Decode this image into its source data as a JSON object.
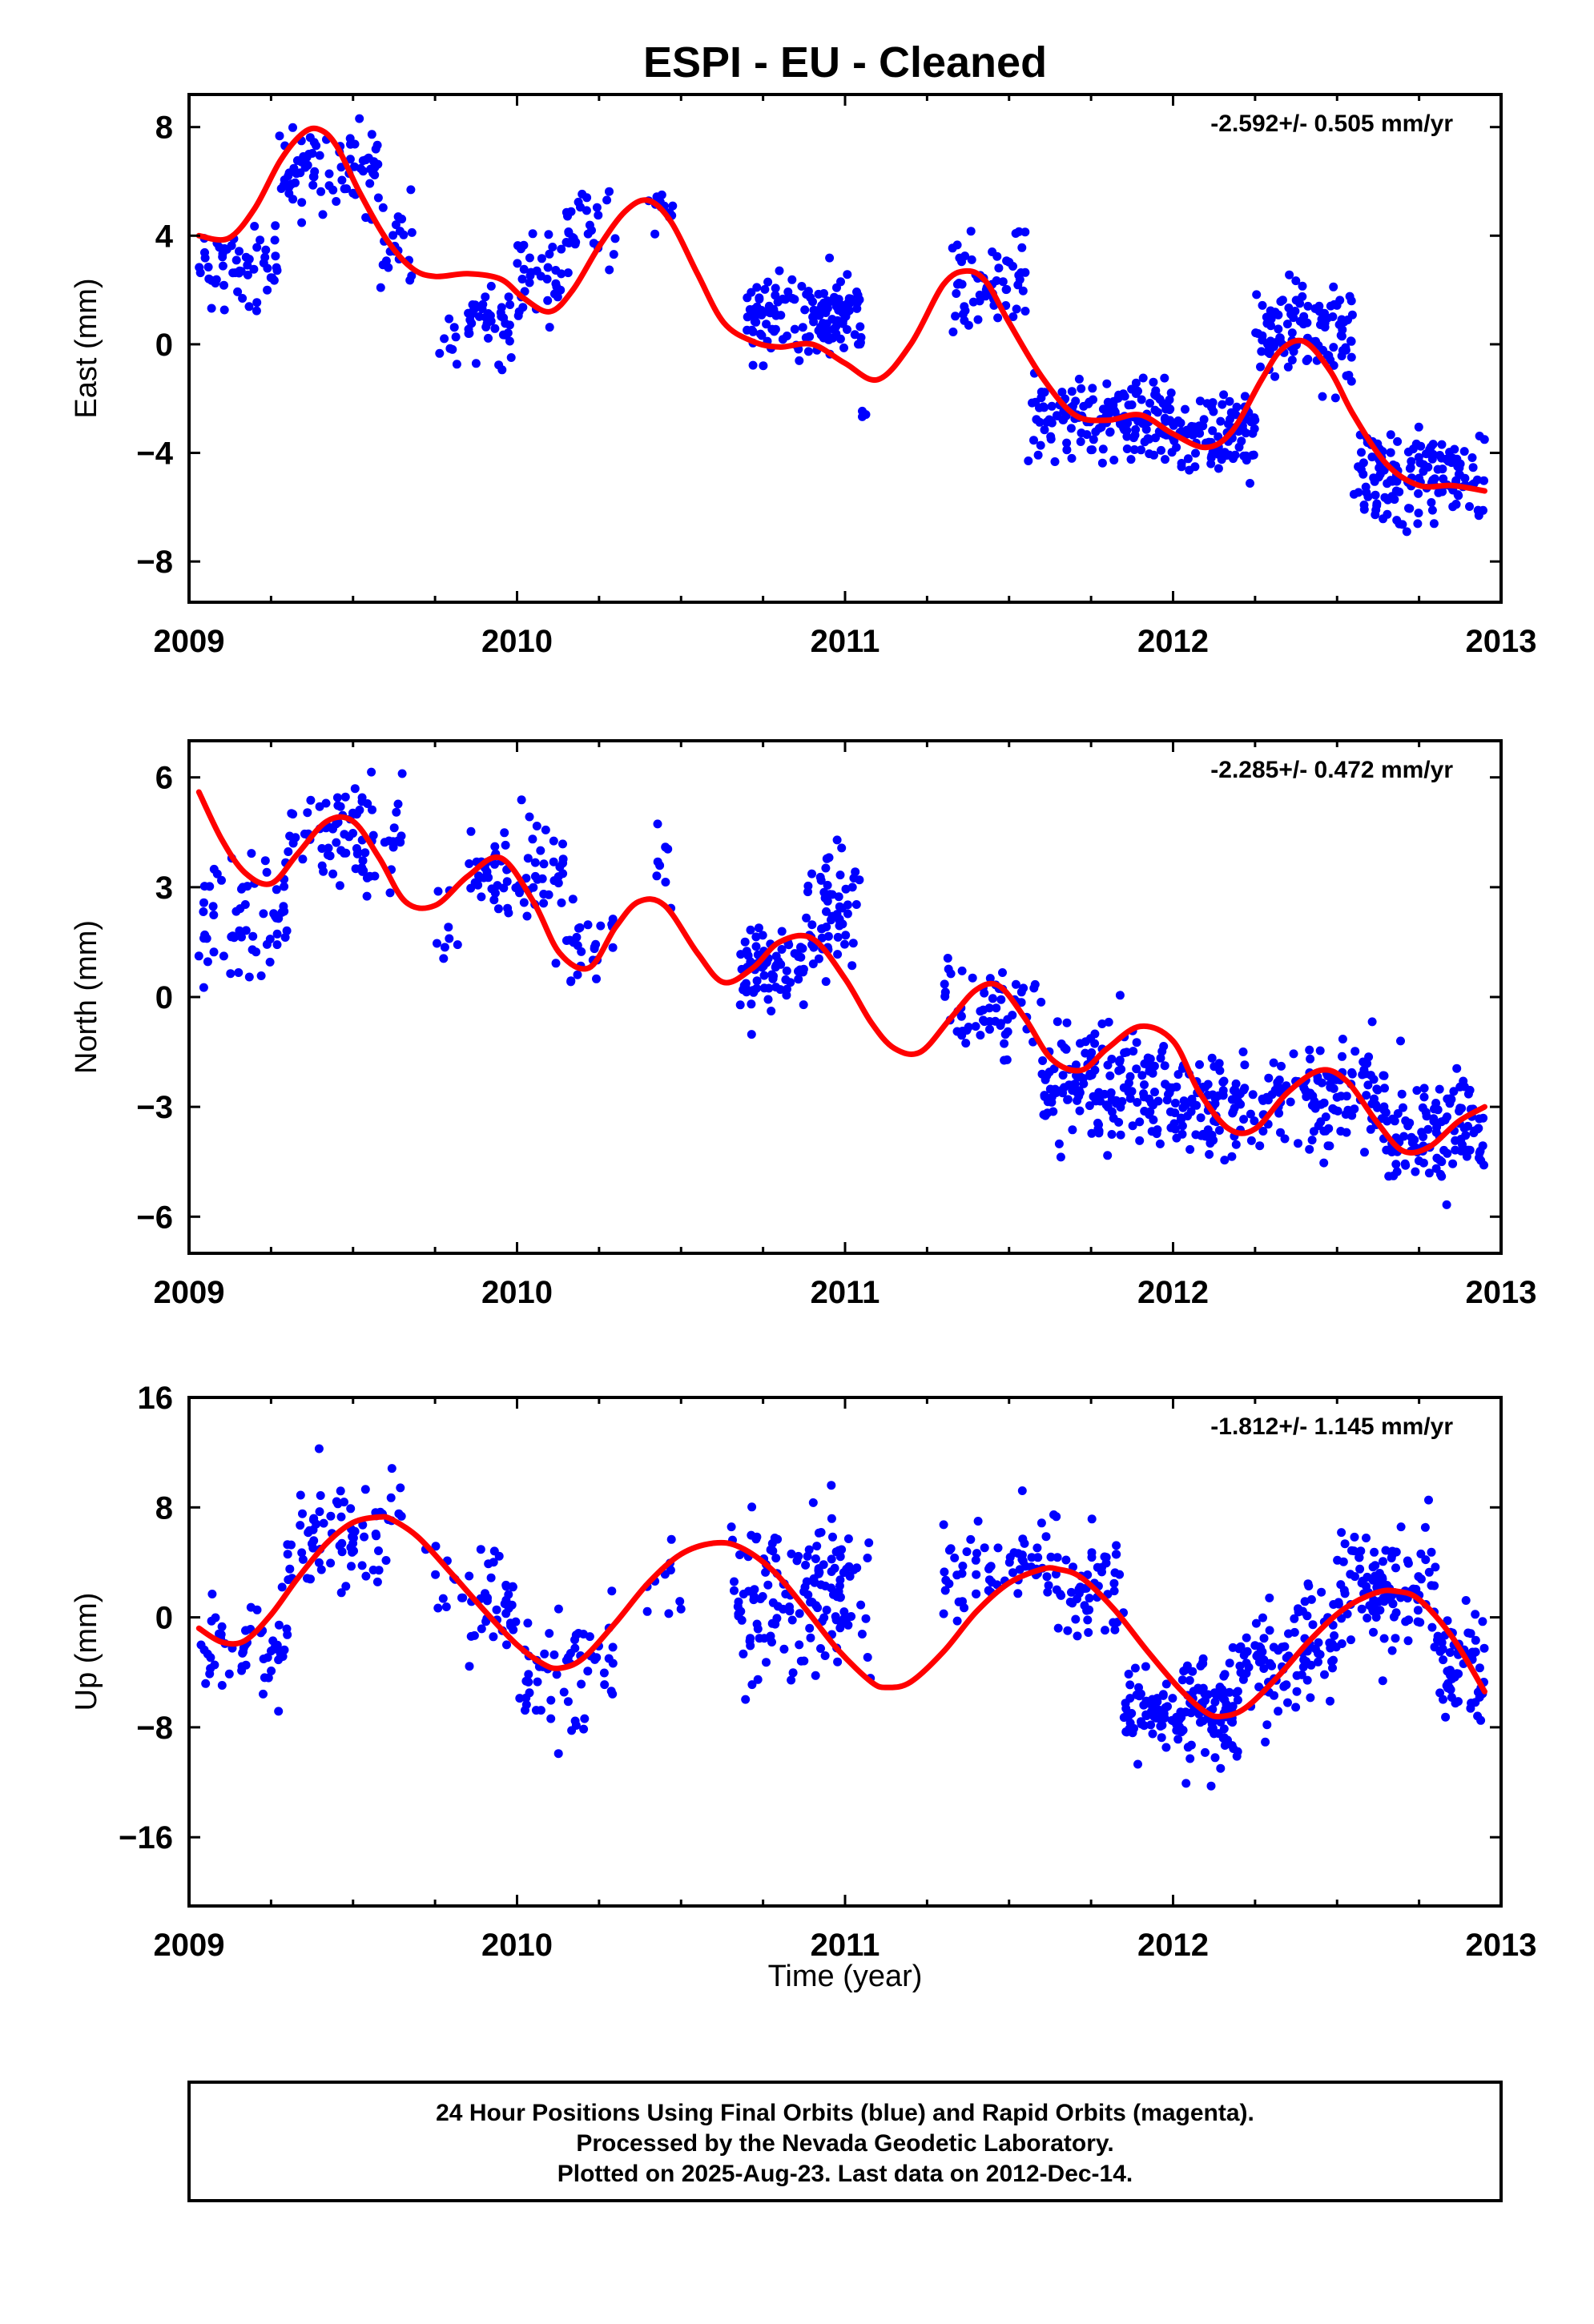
{
  "title": "ESPI  - EU - Cleaned",
  "xlabel": "Time (year)",
  "footer": {
    "line1": "24 Hour Positions Using Final Orbits (blue) and Rapid Orbits (magenta).",
    "line2": "Processed by the Nevada Geodetic Laboratory.",
    "line3": "Plotted on 2025-Aug-23. Last data on 2012-Dec-14."
  },
  "colors": {
    "points": "#0000ff",
    "model": "#ff0000",
    "axis": "#000000"
  },
  "chart_data": [
    {
      "type": "scatter",
      "name": "east",
      "ylabel": "East (mm)",
      "rate": "-2.592+/- 0.505 mm/yr",
      "xlim": [
        2009.0,
        2013.0
      ],
      "ylim": [
        -9.5,
        9.2
      ],
      "xticks": [
        2009,
        2010,
        2011,
        2012,
        2013
      ],
      "yticks": [
        8,
        4,
        0,
        -4,
        -8
      ],
      "model": {
        "x": [
          2009.03,
          2009.12,
          2009.2,
          2009.28,
          2009.35,
          2009.4,
          2009.45,
          2009.52,
          2009.6,
          2009.68,
          2009.75,
          2009.85,
          2009.95,
          2010.02,
          2010.1,
          2010.17,
          2010.25,
          2010.33,
          2010.4,
          2010.47,
          2010.55,
          2010.63,
          2010.72,
          2010.8,
          2010.9,
          2011.0,
          2011.1,
          2011.2,
          2011.3,
          2011.37,
          2011.43,
          2011.5,
          2011.6,
          2011.7,
          2011.8,
          2011.9,
          2012.0,
          2012.1,
          2012.18,
          2012.27,
          2012.33,
          2012.4,
          2012.48,
          2012.55,
          2012.65,
          2012.75,
          2012.85,
          2012.95
        ],
        "y": [
          4.0,
          3.9,
          5.0,
          6.8,
          7.8,
          7.9,
          7.3,
          5.6,
          3.9,
          2.8,
          2.5,
          2.6,
          2.4,
          1.7,
          1.2,
          2.0,
          3.6,
          4.9,
          5.3,
          4.5,
          2.6,
          0.8,
          0.1,
          -0.1,
          0.0,
          -0.7,
          -1.3,
          0.0,
          2.2,
          2.7,
          2.3,
          0.8,
          -1.2,
          -2.6,
          -2.8,
          -2.6,
          -3.3,
          -3.8,
          -3.2,
          -1.3,
          -0.2,
          0.1,
          -1.0,
          -2.6,
          -4.4,
          -5.2,
          -5.2,
          -5.4
        ]
      },
      "clusters": [
        [
          2009.03,
          2009.27,
          2.8,
          1.4,
          55
        ],
        [
          2009.27,
          2009.58,
          6.5,
          1.4,
          75
        ],
        [
          2009.58,
          2009.68,
          3.2,
          1.5,
          22
        ],
        [
          2009.75,
          2009.82,
          0.2,
          0.8,
          8
        ],
        [
          2009.85,
          2010.0,
          0.8,
          1.0,
          40
        ],
        [
          2010.0,
          2010.15,
          2.5,
          1.3,
          35
        ],
        [
          2010.15,
          2010.3,
          4.2,
          1.5,
          30
        ],
        [
          2010.4,
          2010.48,
          5.0,
          0.8,
          12
        ],
        [
          2010.7,
          2011.05,
          1.0,
          1.3,
          140
        ],
        [
          2011.05,
          2011.07,
          -2.5,
          0.3,
          3
        ],
        [
          2011.3,
          2011.55,
          2.2,
          1.5,
          60
        ],
        [
          2011.55,
          2012.0,
          -2.7,
          1.2,
          160
        ],
        [
          2012.0,
          2012.25,
          -3.4,
          1.3,
          90
        ],
        [
          2012.25,
          2012.55,
          0.5,
          1.6,
          110
        ],
        [
          2012.55,
          2012.95,
          -4.8,
          1.5,
          150
        ]
      ]
    },
    {
      "type": "scatter",
      "name": "north",
      "ylabel": "North (mm)",
      "rate": "-2.285+/- 0.472 mm/yr",
      "xlim": [
        2009.0,
        2013.0
      ],
      "ylim": [
        -7.0,
        7.0
      ],
      "xticks": [
        2009,
        2010,
        2011,
        2012,
        2013
      ],
      "yticks": [
        6,
        3,
        0,
        -3,
        -6
      ],
      "model": {
        "x": [
          2009.03,
          2009.1,
          2009.17,
          2009.25,
          2009.33,
          2009.42,
          2009.5,
          2009.58,
          2009.66,
          2009.75,
          2009.85,
          2009.95,
          2010.05,
          2010.13,
          2010.22,
          2010.3,
          2010.37,
          2010.45,
          2010.55,
          2010.63,
          2010.72,
          2010.8,
          2010.9,
          2011.0,
          2011.08,
          2011.15,
          2011.23,
          2011.32,
          2011.4,
          2011.47,
          2011.55,
          2011.63,
          2011.72,
          2011.8,
          2011.9,
          2012.0,
          2012.08,
          2012.17,
          2012.25,
          2012.35,
          2012.45,
          2012.53,
          2012.62,
          2012.7,
          2012.78,
          2012.87,
          2012.95
        ],
        "y": [
          5.6,
          4.3,
          3.4,
          3.1,
          3.9,
          4.8,
          4.8,
          3.8,
          2.6,
          2.5,
          3.3,
          3.8,
          2.6,
          1.2,
          0.8,
          1.9,
          2.6,
          2.5,
          1.2,
          0.4,
          0.8,
          1.5,
          1.6,
          0.5,
          -0.7,
          -1.4,
          -1.5,
          -0.6,
          0.2,
          0.3,
          -0.6,
          -1.7,
          -2.0,
          -1.4,
          -0.8,
          -1.2,
          -2.6,
          -3.6,
          -3.6,
          -2.6,
          -2.0,
          -2.3,
          -3.4,
          -4.2,
          -4.1,
          -3.4,
          -3.0
        ]
      },
      "clusters": [
        [
          2009.03,
          2009.3,
          2.2,
          1.5,
          60
        ],
        [
          2009.3,
          2009.65,
          4.5,
          1.2,
          80
        ],
        [
          2009.75,
          2009.82,
          1.8,
          0.8,
          8
        ],
        [
          2009.85,
          2010.15,
          3.3,
          1.1,
          70
        ],
        [
          2010.15,
          2010.3,
          1.5,
          1.1,
          25
        ],
        [
          2010.42,
          2010.48,
          3.5,
          1.3,
          8
        ],
        [
          2010.68,
          2010.88,
          0.8,
          1.0,
          80
        ],
        [
          2010.88,
          2011.05,
          2.2,
          1.3,
          60
        ],
        [
          2011.3,
          2011.6,
          -0.5,
          1.2,
          60
        ],
        [
          2011.6,
          2012.0,
          -2.4,
          1.3,
          160
        ],
        [
          2012.0,
          2012.4,
          -3.0,
          1.2,
          120
        ],
        [
          2012.4,
          2012.65,
          -2.8,
          1.2,
          90
        ],
        [
          2012.65,
          2012.95,
          -3.7,
          1.3,
          110
        ]
      ]
    },
    {
      "type": "scatter",
      "name": "up",
      "ylabel": "Up (mm)",
      "rate": "-1.812+/- 1.145 mm/yr",
      "xlim": [
        2009.0,
        2013.0
      ],
      "ylim": [
        -21.0,
        16.0
      ],
      "xticks": [
        2009,
        2010,
        2011,
        2012,
        2013
      ],
      "yticks": [
        16,
        8,
        0,
        -8,
        -16
      ],
      "model": {
        "x": [
          2009.03,
          2009.1,
          2009.17,
          2009.25,
          2009.33,
          2009.42,
          2009.5,
          2009.58,
          2009.62,
          2009.7,
          2009.8,
          2009.9,
          2010.0,
          2010.08,
          2010.13,
          2010.2,
          2010.3,
          2010.4,
          2010.5,
          2010.6,
          2010.68,
          2010.78,
          2010.88,
          2010.98,
          2011.08,
          2011.13,
          2011.2,
          2011.3,
          2011.4,
          2011.5,
          2011.6,
          2011.65,
          2011.72,
          2011.82,
          2011.92,
          2012.02,
          2012.1,
          2012.15,
          2012.22,
          2012.32,
          2012.42,
          2012.52,
          2012.62,
          2012.68,
          2012.75,
          2012.85,
          2012.95
        ],
        "y": [
          -0.8,
          -1.8,
          -1.7,
          0.2,
          2.8,
          5.4,
          6.9,
          7.3,
          7.1,
          5.8,
          3.2,
          0.5,
          -2.0,
          -3.4,
          -3.7,
          -3.0,
          -0.4,
          2.5,
          4.6,
          5.4,
          5.1,
          3.4,
          0.6,
          -2.4,
          -4.7,
          -5.1,
          -4.7,
          -2.5,
          0.4,
          2.5,
          3.5,
          3.5,
          2.9,
          0.6,
          -2.4,
          -5.2,
          -6.9,
          -7.2,
          -6.6,
          -4.3,
          -1.6,
          0.6,
          1.8,
          1.9,
          1.3,
          -1.4,
          -5.4
        ]
      },
      "clusters": [
        [
          2009.03,
          2009.3,
          -2.0,
          3.0,
          55
        ],
        [
          2009.3,
          2009.65,
          6.0,
          3.5,
          75
        ],
        [
          2009.7,
          2009.85,
          3.0,
          3.0,
          12
        ],
        [
          2009.85,
          2010.0,
          1.0,
          3.5,
          40
        ],
        [
          2010.0,
          2010.3,
          -4.5,
          4.0,
          60
        ],
        [
          2010.38,
          2010.5,
          2.0,
          3.0,
          10
        ],
        [
          2010.65,
          2011.08,
          2.0,
          4.5,
          150
        ],
        [
          2011.3,
          2011.65,
          3.5,
          3.0,
          70
        ],
        [
          2011.65,
          2011.85,
          1.5,
          3.5,
          50
        ],
        [
          2011.85,
          2012.2,
          -7.0,
          3.0,
          160
        ],
        [
          2012.2,
          2012.5,
          -3.0,
          3.5,
          100
        ],
        [
          2012.5,
          2012.8,
          2.5,
          3.5,
          110
        ],
        [
          2012.8,
          2012.95,
          -3.5,
          3.5,
          60
        ]
      ]
    }
  ]
}
